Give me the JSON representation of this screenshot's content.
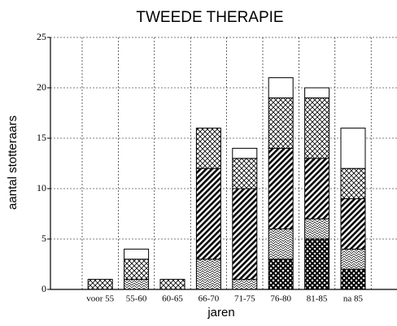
{
  "chart_data": {
    "type": "stacked_bar",
    "title": "TWEEDE THERAPIE",
    "x_label": "jaren",
    "y_label": "aantal stotteraars",
    "categories": [
      "voor 55",
      "55-60",
      "60-65",
      "66-70",
      "71-75",
      "76-80",
      "81-85",
      "na 85"
    ],
    "series": [
      {
        "pattern": "checker",
        "values": [
          0,
          0,
          0,
          0,
          0,
          3,
          5,
          2
        ]
      },
      {
        "pattern": "zigzag",
        "values": [
          0,
          1,
          0,
          3,
          1,
          3,
          2,
          2
        ]
      },
      {
        "pattern": "diagonal",
        "values": [
          0,
          0,
          0,
          9,
          9,
          8,
          6,
          5
        ]
      },
      {
        "pattern": "crosshatch",
        "values": [
          1,
          2,
          1,
          4,
          3,
          5,
          6,
          3
        ]
      },
      {
        "pattern": "blank",
        "values": [
          0,
          1,
          0,
          0,
          1,
          2,
          1,
          4
        ]
      }
    ],
    "ylim": [
      0,
      25
    ],
    "yticks": [
      0,
      5,
      10,
      15,
      20,
      25
    ],
    "grid": true
  }
}
